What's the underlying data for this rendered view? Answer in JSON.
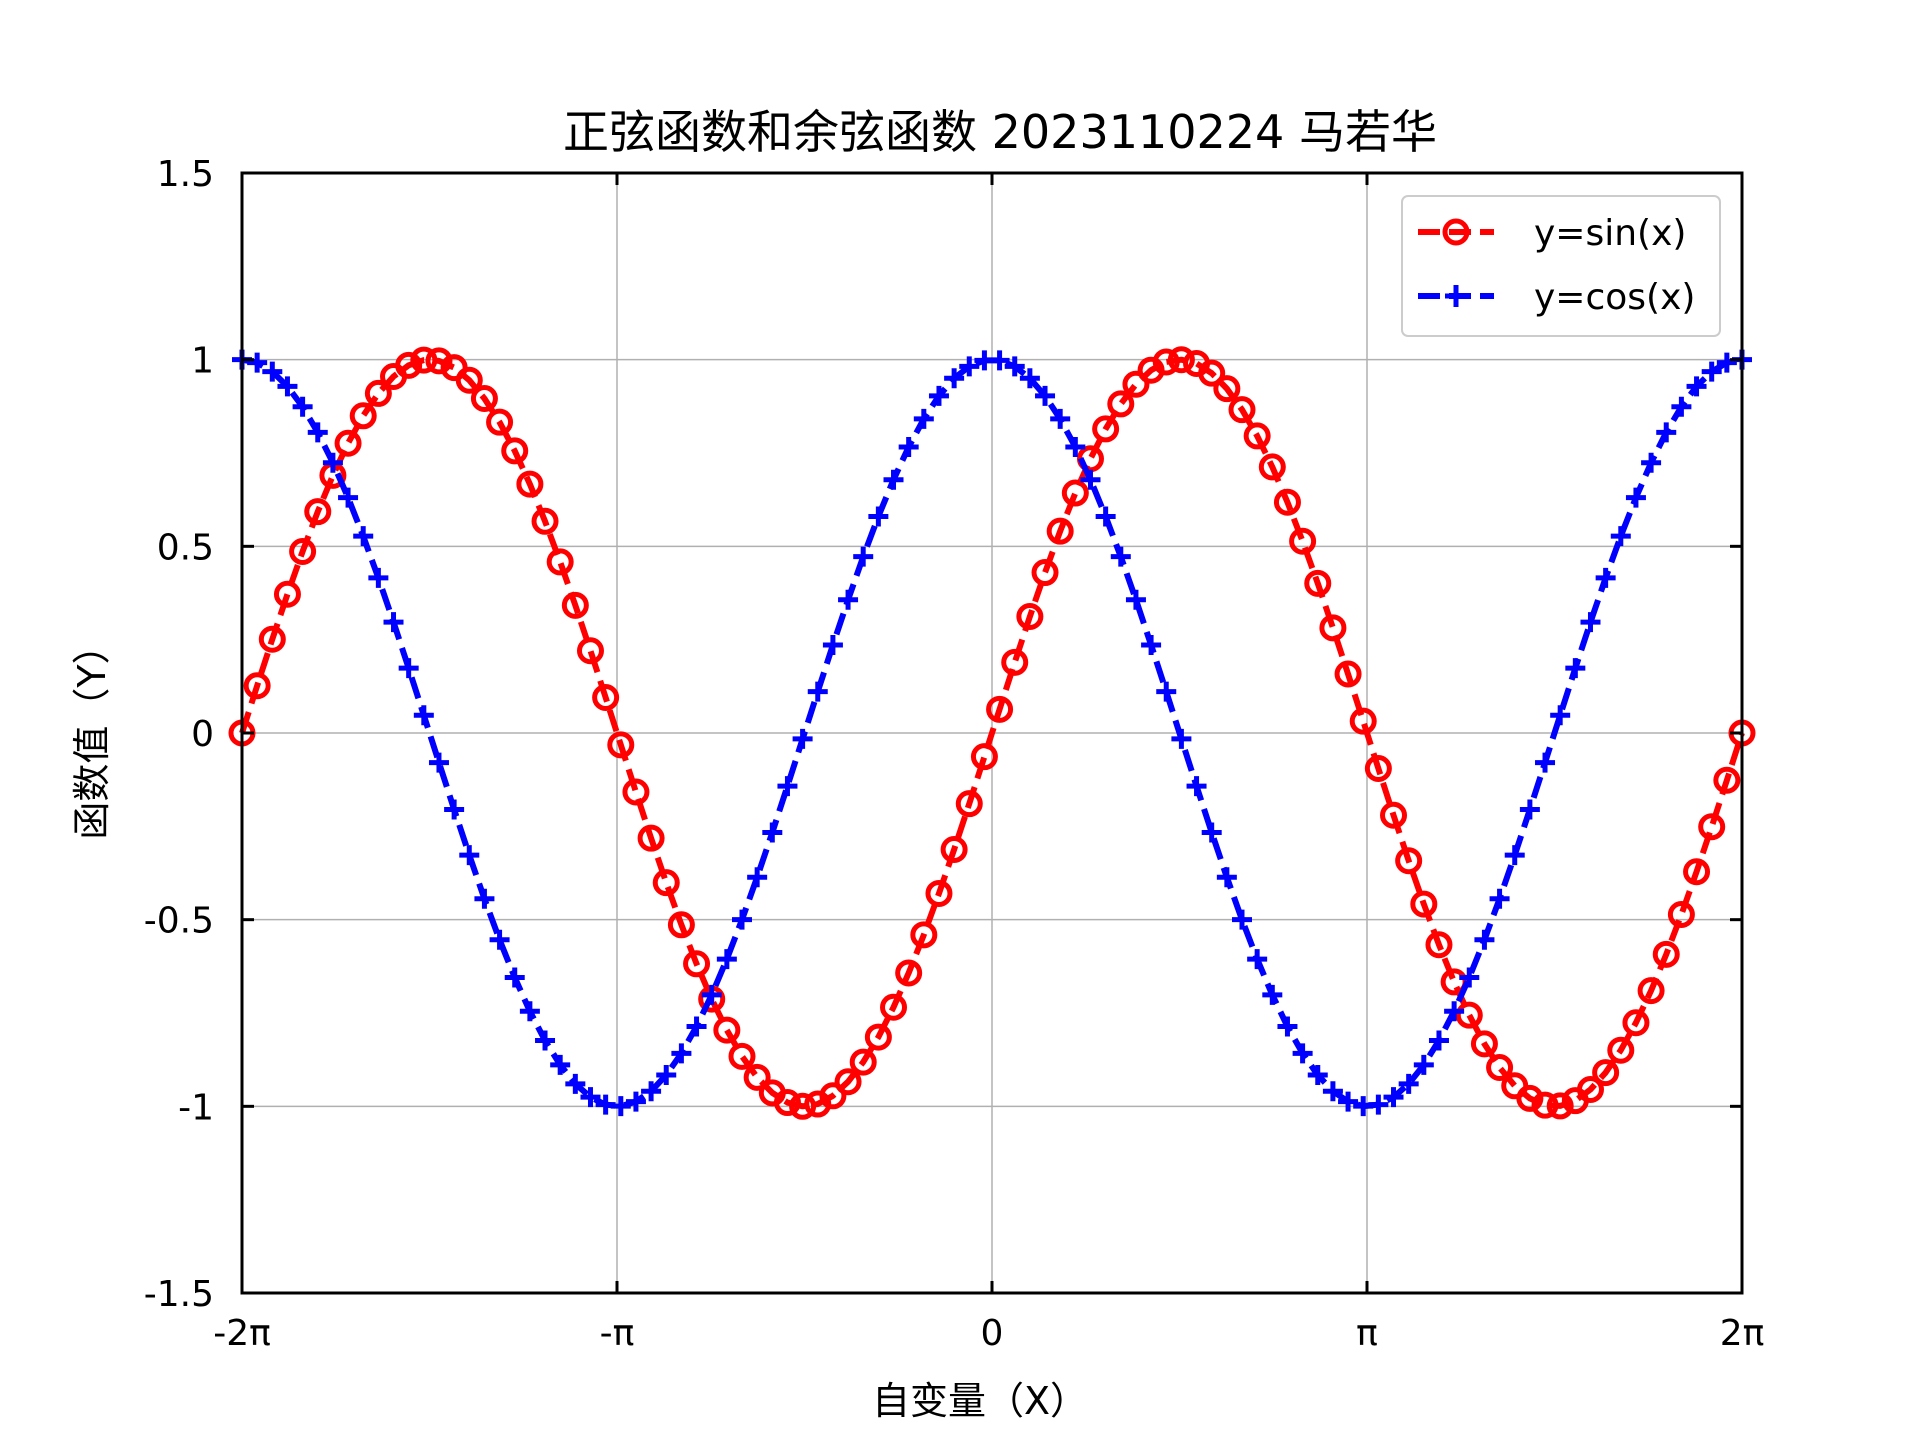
{
  "chart_data": {
    "type": "line",
    "title": "正弦函数和余弦函数 2023110224 马若华",
    "xlabel": "自变量（X）",
    "ylabel": "函数值（Y）",
    "xlim": [
      -6.283185307,
      6.283185307
    ],
    "ylim": [
      -1.5,
      1.5
    ],
    "xticks": [
      -6.283185307,
      -3.141592654,
      0,
      3.141592654,
      6.283185307
    ],
    "xtick_labels": [
      "-2π",
      "-π",
      "0",
      "π",
      "2π"
    ],
    "yticks": [
      -1.5,
      -1,
      -0.5,
      0,
      0.5,
      1,
      1.5
    ],
    "ytick_labels": [
      "-1.5",
      "-1",
      "-0.5",
      "0",
      "0.5",
      "1",
      "1.5"
    ],
    "grid": true,
    "legend_position": "top-right",
    "x_samples": {
      "start": -6.283185307,
      "stop": 6.283185307,
      "count": 100
    },
    "series": [
      {
        "name": "y=sin(x)",
        "function": "sin",
        "color": "#ff0000",
        "marker": "circle",
        "line_style": "dashed"
      },
      {
        "name": "y=cos(x)",
        "function": "cos",
        "color": "#0000ff",
        "marker": "plus",
        "line_style": "dashed"
      }
    ]
  }
}
